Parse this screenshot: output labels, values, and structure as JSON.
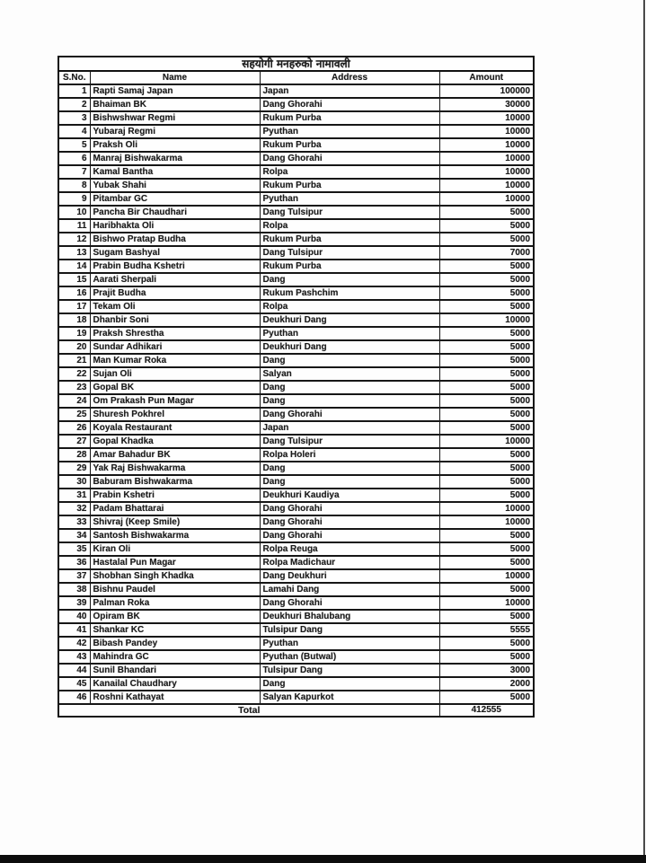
{
  "document": {
    "title": "सहयोगी मनहरुको नामावली",
    "columns": [
      "S.No.",
      "Name",
      "Address",
      "Amount"
    ],
    "rows": [
      {
        "sn": "1",
        "name": "Rapti Samaj Japan",
        "address": "Japan",
        "amount": "100000"
      },
      {
        "sn": "2",
        "name": "Bhaiman BK",
        "address": "Dang Ghorahi",
        "amount": "30000"
      },
      {
        "sn": "3",
        "name": "Bishwshwar Regmi",
        "address": "Rukum Purba",
        "amount": "10000"
      },
      {
        "sn": "4",
        "name": "Yubaraj Regmi",
        "address": "Pyuthan",
        "amount": "10000"
      },
      {
        "sn": "5",
        "name": "Praksh Oli",
        "address": "Rukum Purba",
        "amount": "10000"
      },
      {
        "sn": "6",
        "name": "Manraj Bishwakarma",
        "address": "Dang Ghorahi",
        "amount": "10000"
      },
      {
        "sn": "7",
        "name": "Kamal Bantha",
        "address": "Rolpa",
        "amount": "10000"
      },
      {
        "sn": "8",
        "name": "Yubak Shahi",
        "address": "Rukum Purba",
        "amount": "10000"
      },
      {
        "sn": "9",
        "name": "Pitambar GC",
        "address": "Pyuthan",
        "amount": "10000"
      },
      {
        "sn": "10",
        "name": "Pancha Bir Chaudhari",
        "address": "Dang Tulsipur",
        "amount": "5000"
      },
      {
        "sn": "11",
        "name": "Haribhakta Oli",
        "address": "Rolpa",
        "amount": "5000"
      },
      {
        "sn": "12",
        "name": "Bishwo Pratap Budha",
        "address": "Rukum Purba",
        "amount": "5000"
      },
      {
        "sn": "13",
        "name": "Sugam Bashyal",
        "address": "Dang Tulsipur",
        "amount": "7000"
      },
      {
        "sn": "14",
        "name": "Prabin Budha Kshetri",
        "address": "Rukum Purba",
        "amount": "5000"
      },
      {
        "sn": "15",
        "name": "Aarati Sherpali",
        "address": "Dang",
        "amount": "5000"
      },
      {
        "sn": "16",
        "name": "Prajit Budha",
        "address": "Rukum Pashchim",
        "amount": "5000"
      },
      {
        "sn": "17",
        "name": "Tekam Oli",
        "address": "Rolpa",
        "amount": "5000"
      },
      {
        "sn": "18",
        "name": "Dhanbir Soni",
        "address": "Deukhuri Dang",
        "amount": "10000"
      },
      {
        "sn": "19",
        "name": "Praksh Shrestha",
        "address": "Pyuthan",
        "amount": "5000"
      },
      {
        "sn": "20",
        "name": "Sundar Adhikari",
        "address": "Deukhuri Dang",
        "amount": "5000"
      },
      {
        "sn": "21",
        "name": "Man Kumar Roka",
        "address": "Dang",
        "amount": "5000"
      },
      {
        "sn": "22",
        "name": "Sujan Oli",
        "address": "Salyan",
        "amount": "5000"
      },
      {
        "sn": "23",
        "name": "Gopal BK",
        "address": "Dang",
        "amount": "5000"
      },
      {
        "sn": "24",
        "name": "Om Prakash Pun Magar",
        "address": "Dang",
        "amount": "5000"
      },
      {
        "sn": "25",
        "name": "Shuresh Pokhrel",
        "address": "Dang Ghorahi",
        "amount": "5000"
      },
      {
        "sn": "26",
        "name": "Koyala Restaurant",
        "address": "Japan",
        "amount": "5000"
      },
      {
        "sn": "27",
        "name": "Gopal Khadka",
        "address": "Dang Tulsipur",
        "amount": "10000"
      },
      {
        "sn": "28",
        "name": "Amar Bahadur BK",
        "address": "Rolpa Holeri",
        "amount": "5000"
      },
      {
        "sn": "29",
        "name": "Yak Raj Bishwakarma",
        "address": "Dang",
        "amount": "5000"
      },
      {
        "sn": "30",
        "name": "Baburam Bishwakarma",
        "address": "Dang",
        "amount": "5000"
      },
      {
        "sn": "31",
        "name": "Prabin Kshetri",
        "address": "Deukhuri Kaudiya",
        "amount": "5000"
      },
      {
        "sn": "32",
        "name": "Padam Bhattarai",
        "address": "Dang Ghorahi",
        "amount": "10000"
      },
      {
        "sn": "33",
        "name": "Shivraj (Keep Smile)",
        "address": "Dang Ghorahi",
        "amount": "10000"
      },
      {
        "sn": "34",
        "name": "Santosh Bishwakarma",
        "address": "Dang Ghorahi",
        "amount": "5000"
      },
      {
        "sn": "35",
        "name": "Kiran Oli",
        "address": "Rolpa Reuga",
        "amount": "5000"
      },
      {
        "sn": "36",
        "name": "Hastalal Pun Magar",
        "address": "Rolpa Madichaur",
        "amount": "5000"
      },
      {
        "sn": "37",
        "name": "Shobhan Singh Khadka",
        "address": "Dang Deukhuri",
        "amount": "10000"
      },
      {
        "sn": "38",
        "name": "Bishnu Paudel",
        "address": "Lamahi Dang",
        "amount": "5000"
      },
      {
        "sn": "39",
        "name": "Palman Roka",
        "address": "Dang Ghorahi",
        "amount": "10000"
      },
      {
        "sn": "40",
        "name": "Opiram BK",
        "address": "Deukhuri Bhalubang",
        "amount": "5000"
      },
      {
        "sn": "41",
        "name": "Shankar KC",
        "address": "Tulsipur Dang",
        "amount": "5555"
      },
      {
        "sn": "42",
        "name": "Bibash Pandey",
        "address": "Pyuthan",
        "amount": "5000"
      },
      {
        "sn": "43",
        "name": "Mahindra GC",
        "address": "Pyuthan (Butwal)",
        "amount": "5000"
      },
      {
        "sn": "44",
        "name": "Sunil Bhandari",
        "address": "Tulsipur Dang",
        "amount": "3000"
      },
      {
        "sn": "45",
        "name": "Kanailal Chaudhary",
        "address": "Dang",
        "amount": "2000"
      },
      {
        "sn": "46",
        "name": "Roshni Kathayat",
        "address": "Salyan Kapurkot",
        "amount": "5000"
      }
    ],
    "total_label": "Total",
    "total_value": "412555"
  }
}
